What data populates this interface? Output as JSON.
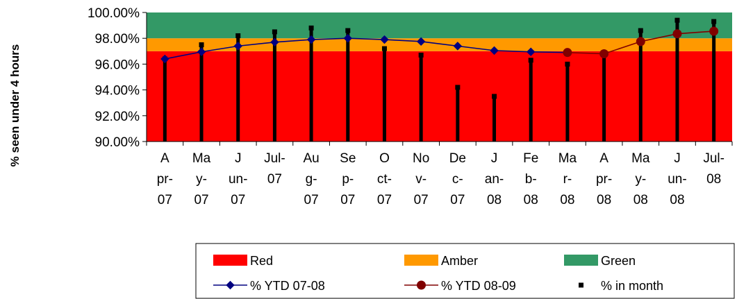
{
  "chart_data": {
    "type": "line",
    "ylabel": "% seen under 4 hours",
    "ylim": [
      90,
      100
    ],
    "y_ticks": [
      "90.00%",
      "92.00%",
      "94.00%",
      "96.00%",
      "98.00%",
      "100.00%"
    ],
    "y_tick_values": [
      90,
      92,
      94,
      96,
      98,
      100
    ],
    "categories": [
      "Apr-07",
      "May-07",
      "Jun-07",
      "Jul-07",
      "Aug-07",
      "Sep-07",
      "Oct-07",
      "Nov-07",
      "Dec-07",
      "Jan-08",
      "Feb-08",
      "Mar-08",
      "Apr-08",
      "May-08",
      "Jun-08",
      "Jul-08"
    ],
    "category_label_lines": [
      [
        "A",
        "pr-",
        "07"
      ],
      [
        "Ma",
        "y-",
        "07"
      ],
      [
        "J",
        "un-",
        "07"
      ],
      [
        "Jul-",
        "07",
        ""
      ],
      [
        "Au",
        "g-",
        "07"
      ],
      [
        "Se",
        "p-",
        "07"
      ],
      [
        "O",
        "ct-",
        "07"
      ],
      [
        "No",
        "v-",
        "07"
      ],
      [
        "De",
        "c-",
        "07"
      ],
      [
        "J",
        "an-",
        "08"
      ],
      [
        "Fe",
        "b-",
        "08"
      ],
      [
        "Ma",
        "r-",
        "08"
      ],
      [
        "A",
        "pr-",
        "08"
      ],
      [
        "Ma",
        "y-",
        "08"
      ],
      [
        "J",
        "un-",
        "08"
      ],
      [
        "Jul-",
        "08",
        ""
      ]
    ],
    "bands": [
      {
        "name": "Red",
        "from": 90,
        "to": 97,
        "color": "#ff0000"
      },
      {
        "name": "Amber",
        "from": 97,
        "to": 98,
        "color": "#ff9900"
      },
      {
        "name": "Green",
        "from": 98,
        "to": 100,
        "color": "#339966"
      }
    ],
    "series": [
      {
        "name": "% YTD 07-08",
        "type": "line",
        "marker": "diamond",
        "color": "#000080",
        "values": [
          96.4,
          96.95,
          97.4,
          97.7,
          97.9,
          98.0,
          97.9,
          97.75,
          97.4,
          97.05,
          96.95,
          96.9,
          null,
          null,
          null,
          null
        ]
      },
      {
        "name": "% YTD 08-09",
        "type": "line",
        "marker": "circle",
        "color": "#800000",
        "values": [
          null,
          null,
          null,
          null,
          null,
          null,
          null,
          null,
          null,
          null,
          null,
          96.9,
          96.8,
          97.75,
          98.35,
          98.55
        ]
      },
      {
        "name": "% in month",
        "type": "bar",
        "marker": "square",
        "color": "#000000",
        "values": [
          96.4,
          97.5,
          98.2,
          98.5,
          98.8,
          98.6,
          97.2,
          96.7,
          94.2,
          93.5,
          96.3,
          96.0,
          96.8,
          98.6,
          99.4,
          99.3
        ]
      }
    ],
    "legend": {
      "placement": "bottom",
      "entries": [
        {
          "label": "Red",
          "kind": "band",
          "color": "#ff0000"
        },
        {
          "label": "Amber",
          "kind": "band",
          "color": "#ff9900"
        },
        {
          "label": "Green",
          "kind": "band",
          "color": "#339966"
        },
        {
          "label": "% YTD 07-08",
          "kind": "line-diamond",
          "color": "#000080"
        },
        {
          "label": "% YTD 08-09",
          "kind": "line-circle",
          "color": "#800000"
        },
        {
          "label": "% in month",
          "kind": "square",
          "color": "#000000"
        }
      ]
    },
    "grid": false
  }
}
